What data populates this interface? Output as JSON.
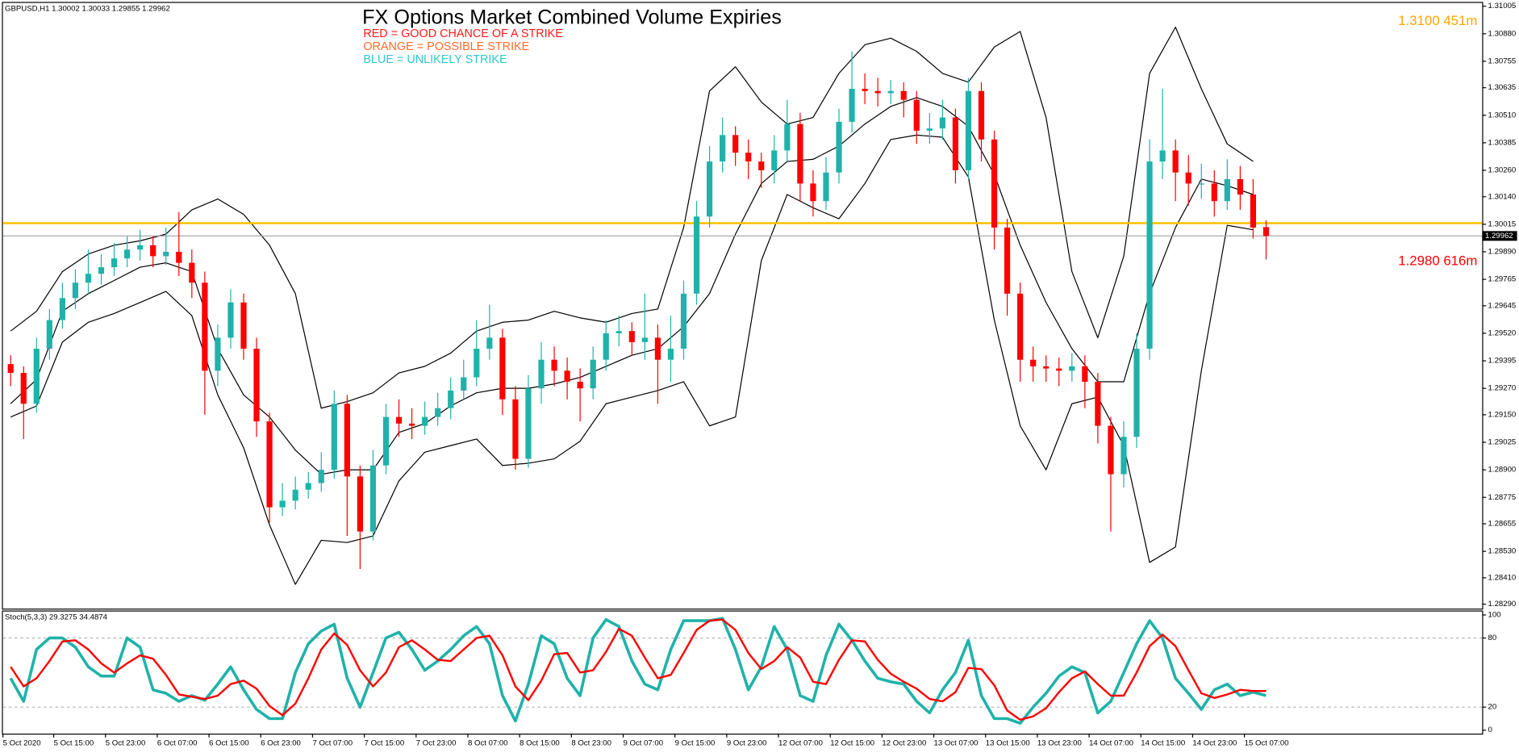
{
  "chart_data": {
    "type": "candlestick",
    "header": "GBPUSD,H1  1.30002 1.30033 1.29855 1.29962",
    "title": "FX Options Market Combined Volume Expiries",
    "notes": [
      {
        "text": "RED = GOOD CHANCE OF A STRIKE",
        "color": "#ff1a1a"
      },
      {
        "text": "ORANGE = POSSIBLE STRIKE",
        "color": "#ff6a2a"
      },
      {
        "text": "BLUE = UNLIKELY STRIKE",
        "color": "#2ec8d0"
      }
    ],
    "annotations": [
      {
        "text": "1.3100 451m",
        "color": "#ffa500"
      },
      {
        "text": "1.2980 616m",
        "color": "#ff0000"
      }
    ],
    "up_color": "#20b2aa",
    "down_color": "#ff0000",
    "ylim": [
      1.2827,
      1.3102
    ],
    "yticks": [
      1.31005,
      {
        "value": 1.3088,
        "label": "1.30880"
      },
      1.30755,
      1.30635,
      {
        "value": 1.3051,
        "label": "1.30510"
      },
      1.30385,
      {
        "value": 1.3026,
        "label": "1.30260"
      },
      {
        "value": 1.3014,
        "label": "1.30140"
      },
      1.30015,
      {
        "value": 1.2989,
        "label": "1.29890"
      },
      1.29765,
      1.29645,
      {
        "value": 1.2952,
        "label": "1.29520"
      },
      1.29395,
      {
        "value": 1.2927,
        "label": "1.29270"
      },
      {
        "value": 1.2915,
        "label": "1.29150"
      },
      1.29025,
      {
        "value": 1.289,
        "label": "1.28900"
      },
      1.28775,
      1.28655,
      {
        "value": 1.2853,
        "label": "1.28530"
      },
      {
        "value": 1.2841,
        "label": "1.28410"
      },
      {
        "value": 1.2829,
        "label": "1.28290"
      }
    ],
    "xtick_labels": [
      "5 Oct 2020",
      "5 Oct 15:00",
      "5 Oct 23:00",
      "6 Oct 07:00",
      "6 Oct 15:00",
      "6 Oct 23:00",
      "7 Oct 07:00",
      "7 Oct 15:00",
      "7 Oct 23:00",
      "8 Oct 07:00",
      "8 Oct 15:00",
      "8 Oct 23:00",
      "9 Oct 07:00",
      "9 Oct 15:00",
      "9 Oct 23:00",
      "12 Oct 07:00",
      "12 Oct 15:00",
      "12 Oct 23:00",
      "13 Oct 07:00",
      "13 Oct 15:00",
      "13 Oct 23:00",
      "14 Oct 07:00",
      "14 Oct 15:00",
      "14 Oct 23:00",
      "15 Oct 07:00"
    ],
    "open": [
      1.2938,
      1.2934,
      1.292,
      1.2945,
      1.2958,
      1.2968,
      1.2975,
      1.2979,
      1.2982,
      1.2986,
      1.299,
      1.2992,
      1.2987,
      1.2989,
      1.2984,
      1.2975,
      1.2935,
      1.295,
      1.2966,
      1.2945,
      1.2912,
      1.2873,
      1.2876,
      1.2881,
      1.2884,
      1.289,
      1.292,
      1.2887,
      1.2862,
      1.2892,
      1.2914,
      1.2911,
      1.291,
      1.2914,
      1.2918,
      1.2926,
      1.2932,
      1.2945,
      1.295,
      1.2922,
      1.2895,
      1.2927,
      1.294,
      1.2935,
      1.293,
      1.2927,
      1.294,
      1.2952,
      1.2953,
      1.2948,
      1.295,
      1.294,
      1.2945,
      1.297,
      1.3005,
      1.303,
      1.3042,
      1.3034,
      1.303,
      1.3026,
      1.3035,
      1.3047,
      1.302,
      1.3012,
      1.3025,
      1.3048,
      1.3063,
      1.3062,
      1.3061,
      1.3062,
      1.3058,
      1.3044,
      1.3045,
      1.305,
      1.3026,
      1.3062,
      1.304,
      1.3,
      1.297,
      1.294,
      1.2937,
      1.2936,
      1.2935,
      1.2937,
      1.293,
      1.291,
      1.2888,
      1.2905,
      1.2945,
      1.303,
      1.3035,
      1.3025,
      1.302,
      1.302,
      1.3012,
      1.3022,
      1.3015,
      1.30002
    ],
    "high": [
      1.2942,
      1.2937,
      1.295,
      1.2963,
      1.2975,
      1.2981,
      1.299,
      1.2988,
      1.2993,
      1.2996,
      1.2999,
      1.2996,
      1.3,
      1.3007,
      1.299,
      1.298,
      1.2956,
      1.2972,
      1.297,
      1.295,
      1.2916,
      1.2884,
      1.2887,
      1.2889,
      1.2898,
      1.2926,
      1.2924,
      1.2892,
      1.2899,
      1.292,
      1.2922,
      1.2918,
      1.2921,
      1.2925,
      1.2932,
      1.294,
      1.2958,
      1.2965,
      1.2954,
      1.2928,
      1.2933,
      1.2948,
      1.2946,
      1.2941,
      1.2936,
      1.2946,
      1.2958,
      1.296,
      1.2957,
      1.297,
      1.2956,
      1.296,
      1.2976,
      1.3012,
      1.3037,
      1.305,
      1.3046,
      1.304,
      1.3034,
      1.3042,
      1.3058,
      1.3052,
      1.3026,
      1.3032,
      1.3054,
      1.308,
      1.307,
      1.3068,
      1.3067,
      1.3066,
      1.3062,
      1.3052,
      1.3058,
      1.3054,
      1.3068,
      1.3066,
      1.3044,
      1.3004,
      1.2975,
      1.2946,
      1.2942,
      1.2941,
      1.2943,
      1.2942,
      1.2934,
      1.2914,
      1.2912,
      1.2952,
      1.304,
      1.3063,
      1.304,
      1.3033,
      1.3029,
      1.3026,
      1.3031,
      1.3028,
      1.3022,
      1.30033
    ],
    "low": [
      1.2928,
      1.2904,
      1.2916,
      1.294,
      1.2954,
      1.2963,
      1.297,
      1.2974,
      1.2978,
      1.2982,
      1.2985,
      1.2982,
      1.2983,
      1.2978,
      1.2968,
      1.2915,
      1.2928,
      1.2945,
      1.294,
      1.2905,
      1.2866,
      1.2869,
      1.2872,
      1.2877,
      1.288,
      1.2886,
      1.286,
      1.2845,
      1.2858,
      1.2888,
      1.2905,
      1.2904,
      1.2906,
      1.291,
      1.2913,
      1.2922,
      1.2928,
      1.294,
      1.2915,
      1.289,
      1.2891,
      1.292,
      1.2928,
      1.2922,
      1.2912,
      1.2922,
      1.2935,
      1.2946,
      1.2942,
      1.294,
      1.292,
      1.293,
      1.294,
      1.2965,
      1.3,
      1.3025,
      1.3028,
      1.3022,
      1.3018,
      1.302,
      1.303,
      1.3012,
      1.3005,
      1.3008,
      1.302,
      1.3043,
      1.3056,
      1.3055,
      1.3056,
      1.305,
      1.3038,
      1.3038,
      1.304,
      1.302,
      1.3022,
      1.303,
      1.299,
      1.296,
      1.293,
      1.293,
      1.293,
      1.2928,
      1.293,
      1.2918,
      1.2902,
      1.2862,
      1.2882,
      1.29,
      1.294,
      1.3022,
      1.3012,
      1.301,
      1.3013,
      1.3005,
      1.3008,
      1.3008,
      1.2995,
      1.29855
    ],
    "close": [
      1.2934,
      1.292,
      1.2945,
      1.2958,
      1.2968,
      1.2975,
      1.2979,
      1.2982,
      1.2986,
      1.299,
      1.2992,
      1.2987,
      1.2989,
      1.2984,
      1.2975,
      1.2935,
      1.295,
      1.2966,
      1.2945,
      1.2912,
      1.2873,
      1.2876,
      1.2881,
      1.2884,
      1.289,
      1.292,
      1.2887,
      1.2862,
      1.2892,
      1.2914,
      1.2911,
      1.291,
      1.2914,
      1.2918,
      1.2926,
      1.2932,
      1.2945,
      1.295,
      1.2922,
      1.2895,
      1.2927,
      1.294,
      1.2935,
      1.293,
      1.2927,
      1.294,
      1.2952,
      1.2953,
      1.2948,
      1.295,
      1.294,
      1.2945,
      1.297,
      1.3005,
      1.303,
      1.3042,
      1.3034,
      1.303,
      1.3026,
      1.3035,
      1.3047,
      1.302,
      1.3012,
      1.3025,
      1.3048,
      1.3063,
      1.3062,
      1.3061,
      1.3062,
      1.3058,
      1.3044,
      1.3045,
      1.305,
      1.3026,
      1.3062,
      1.304,
      1.3,
      1.297,
      1.294,
      1.2937,
      1.2936,
      1.2935,
      1.2937,
      1.293,
      1.291,
      1.2888,
      1.2905,
      1.2945,
      1.303,
      1.3035,
      1.3025,
      1.302,
      1.302,
      1.3012,
      1.3022,
      1.3015,
      1.3,
      1.29962
    ],
    "bands": {
      "color": "#000000",
      "upper": [
        1.2953,
        1.2962,
        1.298,
        1.2988,
        1.2992,
        1.2994,
        1.2997,
        1.3008,
        1.3013,
        1.3006,
        1.2992,
        1.297,
        1.2918,
        1.2921,
        1.2925,
        1.2934,
        1.2937,
        1.2943,
        1.2953,
        1.2957,
        1.2958,
        1.2962,
        1.2959,
        1.2957,
        1.2961,
        1.2963,
        1.3,
        1.3062,
        1.3073,
        1.3057,
        1.3047,
        1.305,
        1.307,
        1.3083,
        1.3086,
        1.308,
        1.307,
        1.3066,
        1.3082,
        1.3089,
        1.305,
        1.298,
        1.295,
        1.2987,
        1.307,
        1.3091,
        1.3063,
        1.3038,
        1.303
      ],
      "middle": [
        1.292,
        1.2931,
        1.2962,
        1.297,
        1.2976,
        1.2982,
        1.2984,
        1.298,
        1.2945,
        1.2924,
        1.2914,
        1.2899,
        1.2888,
        1.289,
        1.289,
        1.2907,
        1.2911,
        1.2919,
        1.2925,
        1.2927,
        1.2927,
        1.2929,
        1.2932,
        1.2937,
        1.2942,
        1.2945,
        1.2955,
        1.297,
        1.2997,
        1.302,
        1.303,
        1.3031,
        1.3037,
        1.3047,
        1.3055,
        1.3059,
        1.3055,
        1.3046,
        1.3024,
        1.2992,
        1.2966,
        1.2945,
        1.293,
        1.293,
        1.297,
        1.3,
        1.3022,
        1.3019,
        1.3015
      ],
      "lower": [
        1.2914,
        1.2919,
        1.2948,
        1.2957,
        1.2961,
        1.2966,
        1.2971,
        1.296,
        1.2924,
        1.29,
        1.2865,
        1.2838,
        1.2858,
        1.2857,
        1.286,
        1.2885,
        1.2898,
        1.2901,
        1.2904,
        1.2892,
        1.2893,
        1.2895,
        1.2903,
        1.292,
        1.2923,
        1.2926,
        1.293,
        1.291,
        1.2914,
        1.2985,
        1.3015,
        1.3009,
        1.3004,
        1.302,
        1.304,
        1.3042,
        1.3041,
        1.3023,
        1.2958,
        1.291,
        1.289,
        1.292,
        1.2923,
        1.2901,
        1.2848,
        1.2855,
        1.2935,
        1.3001,
        1.2999
      ]
    },
    "levels": [
      {
        "value": 1.3002,
        "color": "#ffc000"
      }
    ],
    "current_price": {
      "value": 1.29962,
      "color": "#a0a0a0"
    },
    "indicator": {
      "label": "Stoch(5,3,3) 29.3275 34.4874",
      "ylim": [
        -3,
        103
      ],
      "yticks": [
        100,
        80,
        20,
        0
      ],
      "series": [
        {
          "color": "#20b2aa",
          "values": [
            45,
            25,
            70,
            80,
            80,
            72,
            55,
            47,
            47,
            80,
            72,
            35,
            32,
            25,
            30,
            26,
            40,
            55,
            35,
            18,
            10,
            10,
            50,
            75,
            86,
            92,
            45,
            20,
            50,
            80,
            85,
            70,
            52,
            60,
            70,
            82,
            90,
            75,
            30,
            8,
            40,
            82,
            75,
            45,
            30,
            80,
            96,
            90,
            60,
            40,
            35,
            70,
            95,
            95,
            95,
            97,
            70,
            35,
            55,
            90,
            70,
            30,
            25,
            65,
            92,
            78,
            60,
            45,
            42,
            40,
            25,
            15,
            35,
            50,
            78,
            30,
            10,
            10,
            6,
            20,
            32,
            47,
            55,
            50,
            15,
            25,
            50,
            75,
            95,
            80,
            45,
            32,
            18,
            35,
            40,
            30,
            33,
            30
          ]
        },
        {
          "color": "#ff0000",
          "values": [
            55,
            38,
            45,
            60,
            77,
            78,
            70,
            58,
            50,
            58,
            65,
            62,
            48,
            31,
            29,
            27,
            30,
            40,
            43,
            36,
            21,
            13,
            23,
            45,
            70,
            84,
            74,
            52,
            38,
            50,
            72,
            78,
            70,
            61,
            60,
            70,
            80,
            82,
            65,
            38,
            26,
            43,
            66,
            67,
            50,
            52,
            68,
            88,
            82,
            63,
            45,
            48,
            67,
            87,
            95,
            96,
            87,
            67,
            53,
            60,
            72,
            63,
            42,
            40,
            61,
            78,
            77,
            61,
            49,
            42,
            36,
            27,
            25,
            33,
            54,
            53,
            39,
            17,
            9,
            12,
            19,
            33,
            45,
            51,
            40,
            30,
            30,
            50,
            73,
            83,
            73,
            52,
            32,
            28,
            31,
            35,
            34,
            34
          ]
        }
      ]
    }
  }
}
